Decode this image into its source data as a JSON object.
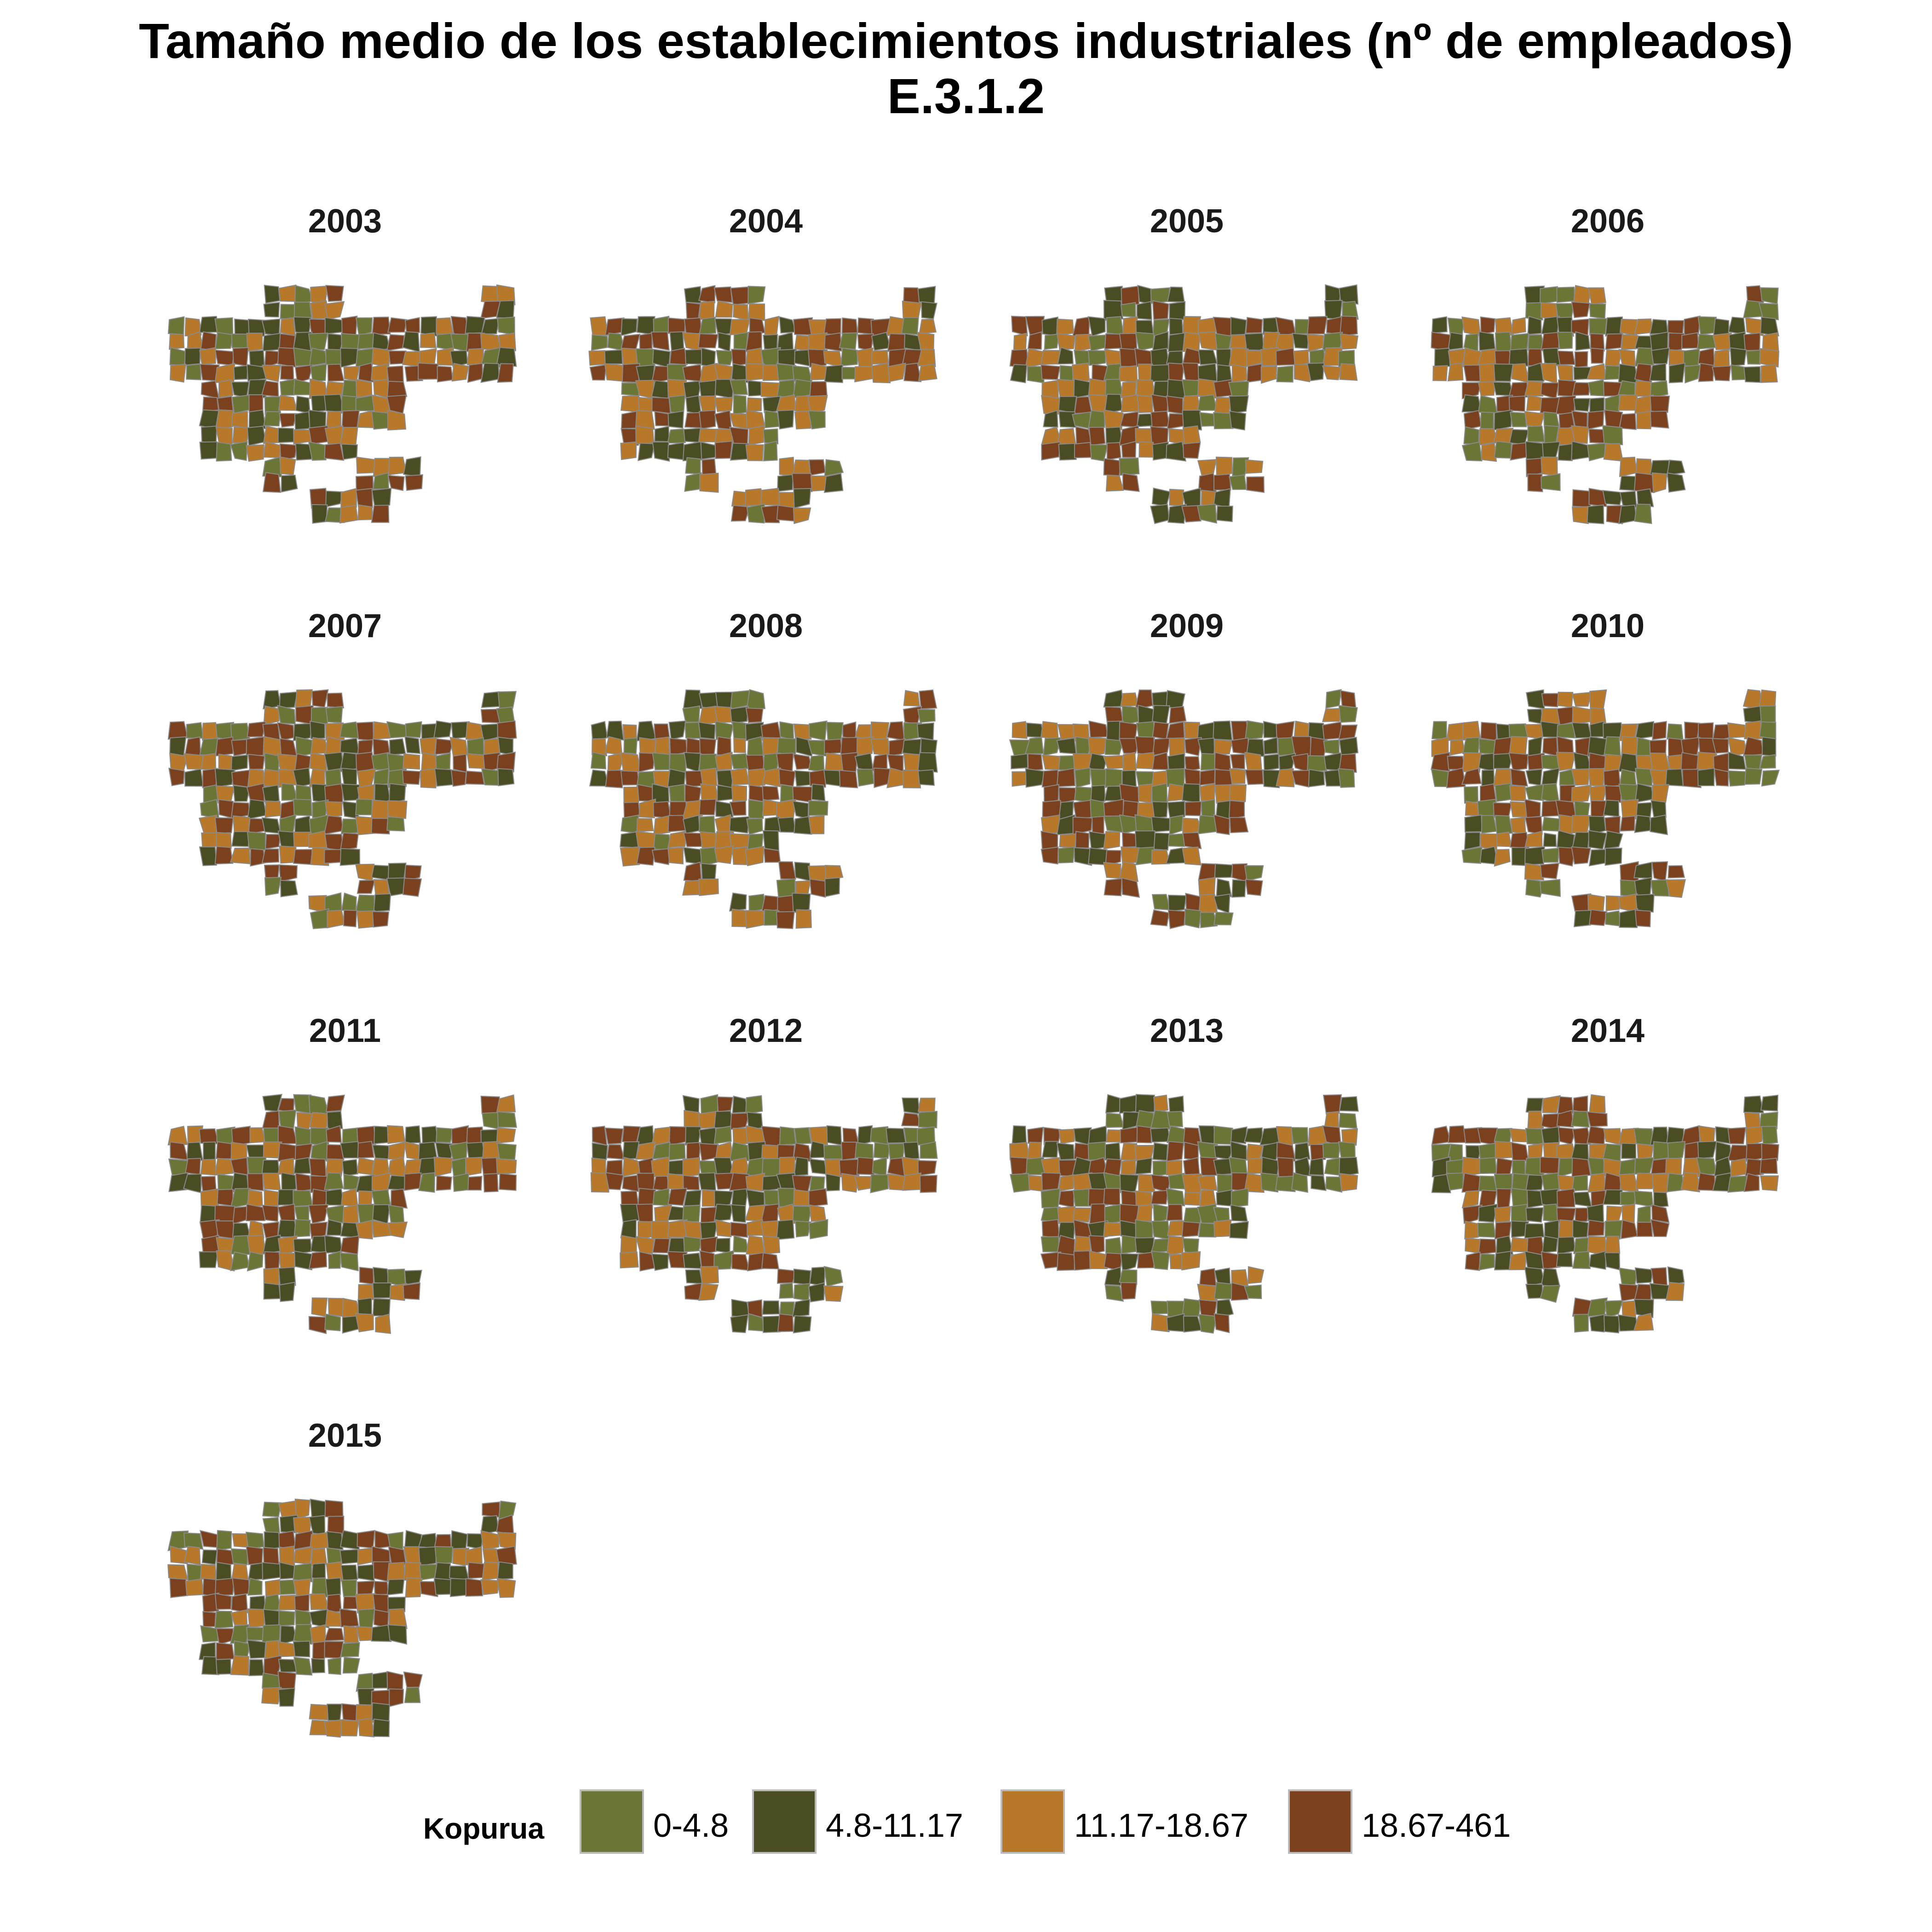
{
  "title": {
    "line1": "Tamaño medio de los establecimientos industriales (nº de empleados)",
    "line2": "E.3.1.2"
  },
  "panels": [
    {
      "year": "2003"
    },
    {
      "year": "2004"
    },
    {
      "year": "2005"
    },
    {
      "year": "2006"
    },
    {
      "year": "2007"
    },
    {
      "year": "2008"
    },
    {
      "year": "2009"
    },
    {
      "year": "2010"
    },
    {
      "year": "2011"
    },
    {
      "year": "2012"
    },
    {
      "year": "2013"
    },
    {
      "year": "2014"
    },
    {
      "year": "2015"
    }
  ],
  "legend": {
    "title": "Kopurua",
    "items": [
      {
        "label": "0-4.8",
        "color": "#6b7535"
      },
      {
        "label": "4.8-11.17",
        "color": "#4a4d24"
      },
      {
        "label": "11.17-18.67",
        "color": "#b8782a"
      },
      {
        "label": "18.67-461",
        "color": "#7b401e"
      }
    ]
  },
  "map_style": {
    "border_color": "#8a8a8a",
    "background": "#ffffff"
  }
}
